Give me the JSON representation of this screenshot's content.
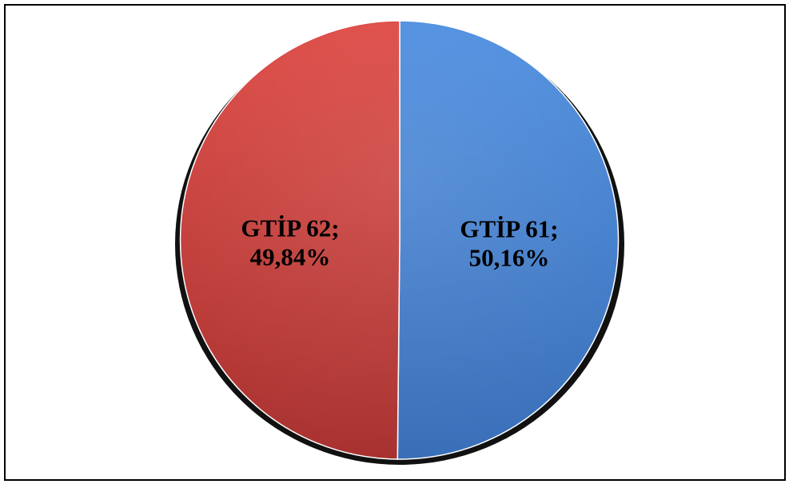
{
  "chart_data": {
    "type": "pie",
    "title": "",
    "slices": [
      {
        "label": "GTİP 61",
        "value": 50.16,
        "value_text": "50,16%",
        "color": "#4a86d4"
      },
      {
        "label": "GTİP 62",
        "value": 49.84,
        "value_text": "49,84%",
        "color": "#d8453f"
      }
    ],
    "start_angle": "12 o'clock",
    "direction": "clockwise",
    "legend": "none"
  }
}
